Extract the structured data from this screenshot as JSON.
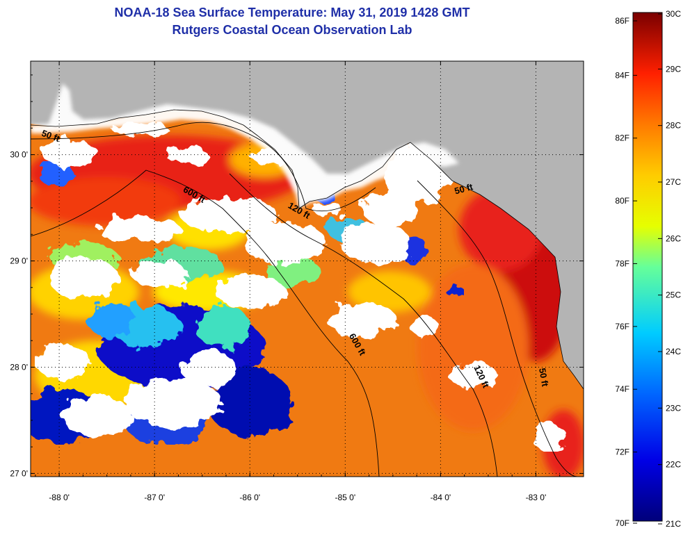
{
  "title": "NOAA-18 Sea Surface Temperature:  May 31, 2019 1428 GMT",
  "subtitle": "Rutgers Coastal Ocean Observation Lab",
  "map": {
    "lon_range": [
      -88.3,
      -82.5
    ],
    "lat_range": [
      26.97,
      30.88
    ],
    "lon_ticks": [
      {
        "value": -88,
        "label": "-88 0'"
      },
      {
        "value": -87,
        "label": "-87 0'"
      },
      {
        "value": -86,
        "label": "-86 0'"
      },
      {
        "value": -85,
        "label": "-85 0'"
      },
      {
        "value": -84,
        "label": "-84 0'"
      },
      {
        "value": -83,
        "label": "-83 0'"
      }
    ],
    "lat_ticks": [
      {
        "value": 30,
        "label": "30 0'"
      },
      {
        "value": 29,
        "label": "29 0'"
      },
      {
        "value": 28,
        "label": "28 0'"
      },
      {
        "value": 27,
        "label": "27 0'"
      }
    ],
    "grid": "dotted",
    "land_color": "#b4b4b4",
    "cloud_color": "#ffffff",
    "contour_labels": [
      {
        "text": "50 ft",
        "lon": -88.1,
        "lat": 30.15
      },
      {
        "text": "600 ft",
        "lon": -86.6,
        "lat": 29.6
      },
      {
        "text": "120 ft",
        "lon": -85.5,
        "lat": 29.45
      },
      {
        "text": "50 ft",
        "lon": -83.75,
        "lat": 29.65
      },
      {
        "text": "600 ft",
        "lon": -84.9,
        "lat": 28.2
      },
      {
        "text": "120 ft",
        "lon": -83.6,
        "lat": 27.9
      },
      {
        "text": "50 ft",
        "lon": -82.95,
        "lat": 27.9
      }
    ]
  },
  "colorbar": {
    "fahrenheit_labels": [
      "86F",
      "84F",
      "82F",
      "80F",
      "78F",
      "76F",
      "74F",
      "72F",
      "70F"
    ],
    "celsius_labels": [
      "30C",
      "29C",
      "28C",
      "27C",
      "26C",
      "25C",
      "24C",
      "23C",
      "22C",
      "21C"
    ],
    "range_c": [
      21,
      30
    ],
    "colors": [
      "#000080",
      "#0000ff",
      "#0080ff",
      "#00ffff",
      "#80ff80",
      "#ffff00",
      "#ff8000",
      "#ff0000",
      "#800000"
    ]
  }
}
